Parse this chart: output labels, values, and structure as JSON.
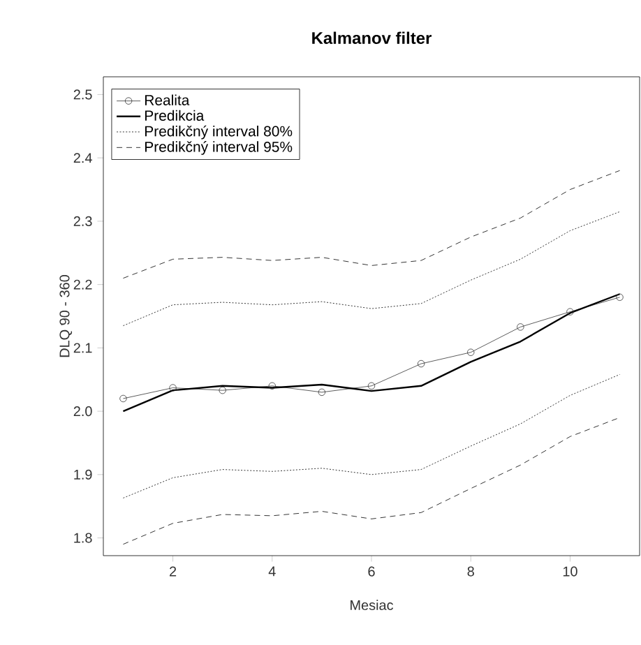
{
  "chart_data": {
    "type": "line",
    "title": "Kalmanov filter",
    "xlabel": "Mesiac",
    "ylabel": "DLQ 90 - 360",
    "x": [
      1,
      2,
      3,
      4,
      5,
      6,
      7,
      8,
      9,
      10,
      11
    ],
    "series": [
      {
        "name": "Realita",
        "color": "#333333",
        "marker": "circle",
        "line_style": "solid",
        "values": [
          2.02,
          2.037,
          2.033,
          2.04,
          2.03,
          2.04,
          2.075,
          2.093,
          2.133,
          2.157,
          2.18
        ]
      },
      {
        "name": "Predikcia",
        "color": "#000000",
        "marker": "none",
        "line_style": "solid",
        "values": [
          2.0,
          2.033,
          2.04,
          2.037,
          2.042,
          2.032,
          2.04,
          2.078,
          2.11,
          2.155,
          2.185
        ]
      },
      {
        "name": "Predikčný interval 80%",
        "color": "#000000",
        "marker": "none",
        "line_style": "dotted",
        "values": [
          2.135,
          2.168,
          2.172,
          2.168,
          2.173,
          2.162,
          2.17,
          2.207,
          2.24,
          2.285,
          2.315
        ]
      },
      {
        "name": "Predikčný interval 95%",
        "color": "#000000",
        "marker": "none",
        "line_style": "dashed",
        "values": [
          2.21,
          2.24,
          2.243,
          2.238,
          2.243,
          2.23,
          2.238,
          2.275,
          2.305,
          2.35,
          2.38
        ]
      },
      {
        "color": "#000000",
        "marker": "none",
        "line_style": "dotted",
        "values": [
          1.863,
          1.895,
          1.908,
          1.905,
          1.91,
          1.9,
          1.908,
          1.945,
          1.98,
          2.025,
          2.058
        ]
      },
      {
        "color": "#000000",
        "marker": "none",
        "line_style": "dashed",
        "values": [
          1.79,
          1.823,
          1.837,
          1.835,
          1.842,
          1.83,
          1.84,
          1.878,
          1.915,
          1.96,
          1.99
        ]
      }
    ],
    "xlim": [
      0.6,
      11.4
    ],
    "ylim": [
      1.772,
      2.528
    ],
    "xticks": [
      2,
      4,
      6,
      8,
      10
    ],
    "yticks": [
      1.8,
      1.9,
      {
        "value": 2,
        "label": "2.0"
      },
      2.1,
      2.2,
      2.3,
      2.4,
      2.5
    ],
    "grid": false,
    "legend": "top left"
  }
}
